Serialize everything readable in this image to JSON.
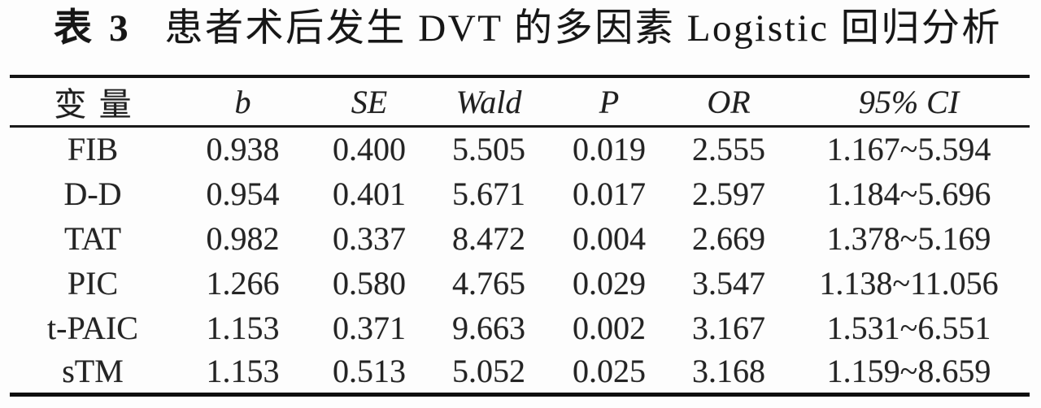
{
  "table": {
    "title_label": "表 3",
    "title_text": "患者术后发生 DVT 的多因素 Logistic 回归分析",
    "columns": [
      "变量",
      "b",
      "SE",
      "Wald",
      "P",
      "OR",
      "95% CI"
    ],
    "rows": [
      [
        "FIB",
        "0.938",
        "0.400",
        "5.505",
        "0.019",
        "2.555",
        "1.167~5.594"
      ],
      [
        "D-D",
        "0.954",
        "0.401",
        "5.671",
        "0.017",
        "2.597",
        "1.184~5.696"
      ],
      [
        "TAT",
        "0.982",
        "0.337",
        "8.472",
        "0.004",
        "2.669",
        "1.378~5.169"
      ],
      [
        "PIC",
        "1.266",
        "0.580",
        "4.765",
        "0.029",
        "3.547",
        "1.138~11.056"
      ],
      [
        "t-PAIC",
        "1.153",
        "0.371",
        "9.663",
        "0.002",
        "3.167",
        "1.531~6.551"
      ],
      [
        "sTM",
        "1.153",
        "0.513",
        "5.052",
        "0.025",
        "3.168",
        "1.159~8.659"
      ]
    ]
  },
  "colors": {
    "text": "#1f1f1f",
    "rule": "#141414",
    "background": "#fdfdfd"
  }
}
